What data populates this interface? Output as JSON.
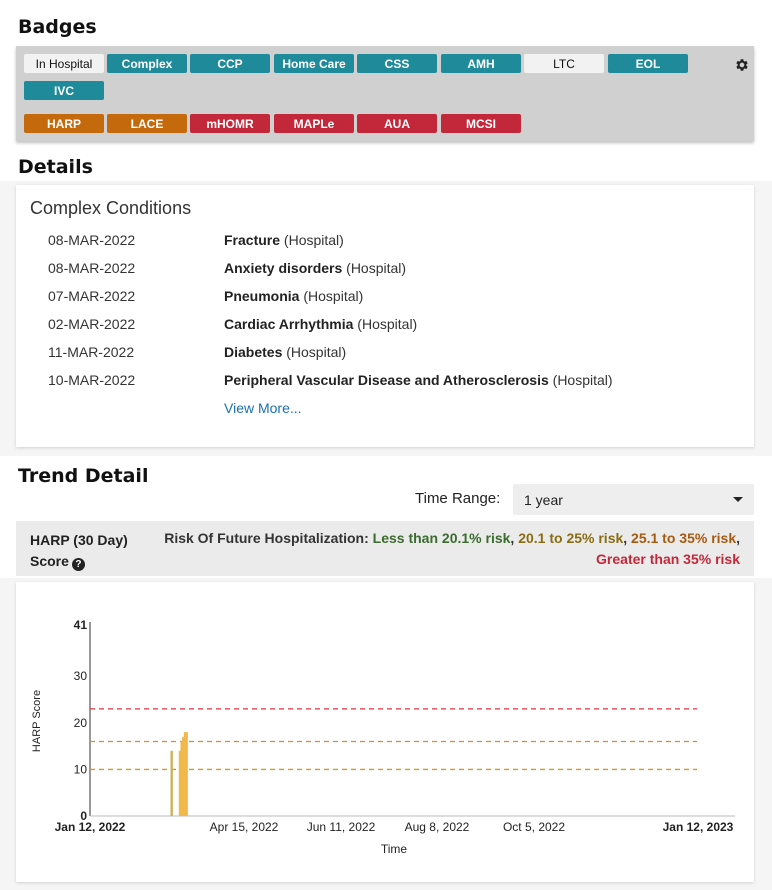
{
  "badges": {
    "title": "Badges",
    "row1": [
      {
        "label": "In Hospital",
        "style": "light"
      },
      {
        "label": "Complex",
        "style": "teal"
      },
      {
        "label": "CCP",
        "style": "teal"
      },
      {
        "label": "Home Care",
        "style": "teal"
      },
      {
        "label": "CSS",
        "style": "teal"
      },
      {
        "label": "AMH",
        "style": "teal"
      },
      {
        "label": "LTC",
        "style": "light"
      },
      {
        "label": "EOL",
        "style": "teal"
      }
    ],
    "row2": [
      {
        "label": "IVC",
        "style": "teal"
      }
    ],
    "row3": [
      {
        "label": "HARP",
        "style": "orange"
      },
      {
        "label": "LACE",
        "style": "orange"
      },
      {
        "label": "mHOMR",
        "style": "red"
      },
      {
        "label": "MAPLe",
        "style": "red"
      },
      {
        "label": "AUA",
        "style": "red"
      },
      {
        "label": "MCSI",
        "style": "red"
      }
    ],
    "settings_icon": "gear-icon"
  },
  "details": {
    "title": "Details",
    "card_title": "Complex Conditions",
    "conditions": [
      {
        "date": "08-MAR-2022",
        "name": "Fracture",
        "source": "(Hospital)"
      },
      {
        "date": "08-MAR-2022",
        "name": "Anxiety disorders",
        "source": "(Hospital)"
      },
      {
        "date": "07-MAR-2022",
        "name": "Pneumonia",
        "source": "(Hospital)"
      },
      {
        "date": "02-MAR-2022",
        "name": "Cardiac Arrhythmia",
        "source": "(Hospital)"
      },
      {
        "date": "11-MAR-2022",
        "name": "Diabetes",
        "source": "(Hospital)"
      },
      {
        "date": "10-MAR-2022",
        "name": "Peripheral Vascular Disease and Atherosclerosis",
        "source": "(Hospital)"
      }
    ],
    "view_more": "View More..."
  },
  "trend": {
    "title": "Trend Detail",
    "time_range_label": "Time Range:",
    "time_range_value": "1 year",
    "score_title_line1": "HARP (30 Day)",
    "score_title_line2": "Score",
    "help_icon": "question-circle-icon",
    "risk_prefix": "Risk Of Future Hospitalization:",
    "risk_low": "Less than 20.1% risk",
    "risk_mid": "20.1 to 25% risk",
    "risk_high": "25.1 to 35% risk",
    "risk_very_high": "Greater than 35% risk",
    "sep": ","
  },
  "colors": {
    "teal": "#1f8a99",
    "orange": "#c56a0c",
    "red": "#c3283a",
    "link": "#1a6fb4",
    "risk_green": "#3b6b2e",
    "risk_olive": "#8a6d12",
    "risk_orange": "#a65a0f",
    "risk_red": "#c3283a"
  },
  "chart_data": {
    "type": "bar",
    "xlabel": "Time",
    "ylabel": "HARP Score",
    "ylim": [
      0,
      41
    ],
    "yticks": [
      0,
      10,
      20,
      30,
      41
    ],
    "xlim": [
      "2022-01-12",
      "2023-01-12"
    ],
    "xticks": [
      "Jan 12, 2022",
      "Apr 15, 2022",
      "Jun 11, 2022",
      "Aug 8, 2022",
      "Oct 5, 2022",
      "Jan 12, 2023"
    ],
    "grid": false,
    "reference_lines": [
      {
        "y": 10,
        "color": "#d19a1a",
        "style": "dashed"
      },
      {
        "y": 16,
        "color": "#e08a1e",
        "style": "dashed"
      },
      {
        "y": 23,
        "color": "#e03040",
        "style": "dashed"
      }
    ],
    "points": [
      {
        "x": "2022-03-02",
        "y": 14,
        "color": "#c9b458"
      },
      {
        "x": "2022-03-07",
        "y": 14,
        "color": "#f2b84b"
      },
      {
        "x": "2022-03-08",
        "y": 16,
        "color": "#f2b84b"
      },
      {
        "x": "2022-03-09",
        "y": 17,
        "color": "#f2b84b"
      },
      {
        "x": "2022-03-10",
        "y": 18,
        "color": "#f2b84b"
      },
      {
        "x": "2022-03-11",
        "y": 18,
        "color": "#f2b84b"
      }
    ]
  }
}
